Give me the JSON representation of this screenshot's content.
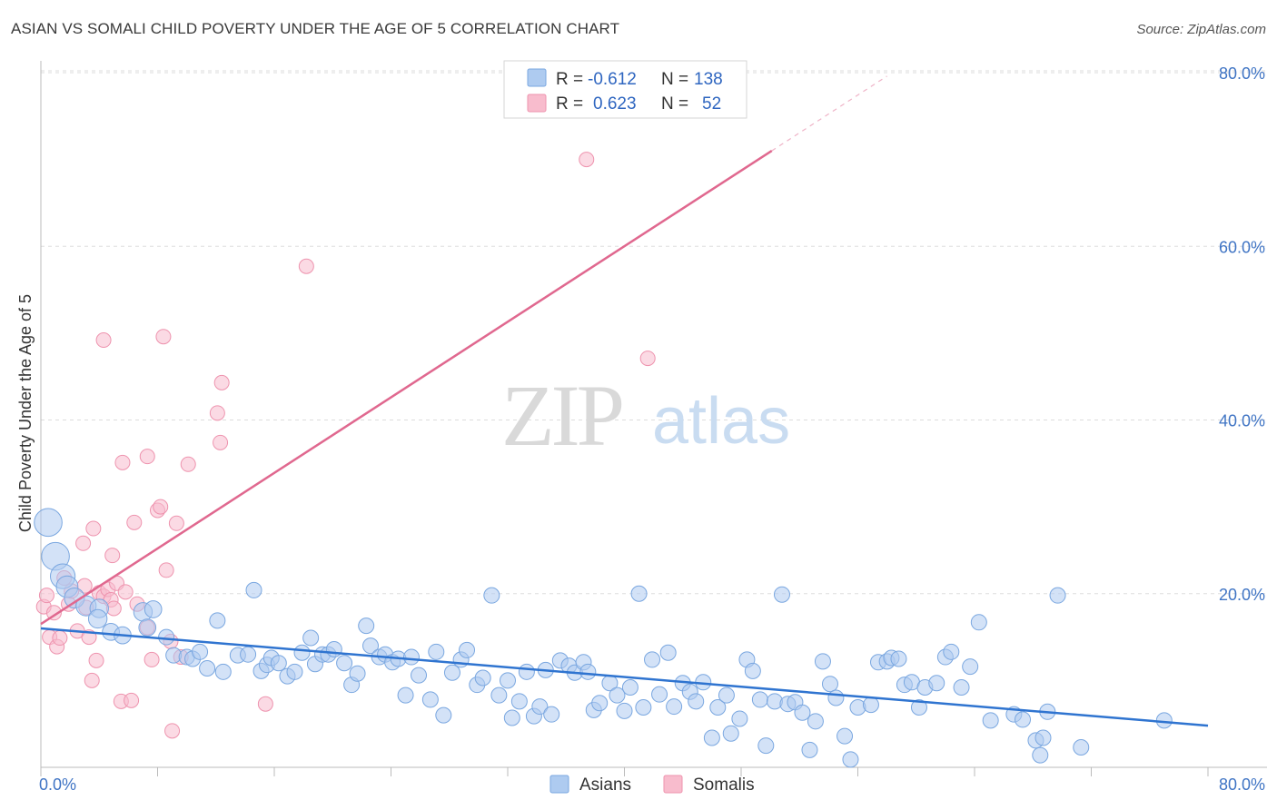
{
  "title": "ASIAN VS SOMALI CHILD POVERTY UNDER THE AGE OF 5 CORRELATION CHART",
  "source": "Source: ZipAtlas.com",
  "watermark": {
    "part1": "ZIP",
    "part2": "atlas"
  },
  "legend": {
    "asian": {
      "r_label": "R =",
      "r_value": "-0.612",
      "n_label": "N =",
      "n_value": "138"
    },
    "somali": {
      "r_label": "R =",
      "r_value": "0.623",
      "n_label": "N =",
      "n_value": "52"
    }
  },
  "bottom_legend": {
    "asian": "Asians",
    "somali": "Somalis"
  },
  "colors": {
    "asian_fill": "#aecbf0",
    "asian_stroke": "#7aa7e0",
    "asian_line": "#2f74d0",
    "somali_fill": "#f8bccd",
    "somali_stroke": "#ee93ae",
    "somali_line": "#e0688f",
    "tick_text": "#3f74c4",
    "grid": "#dddddd"
  },
  "chart_data": {
    "type": "scatter",
    "title": "ASIAN VS SOMALI CHILD POVERTY UNDER THE AGE OF 5 CORRELATION CHART",
    "xlabel": "",
    "ylabel": "Child Poverty Under the Age of 5",
    "xlim": [
      0,
      80
    ],
    "ylim": [
      0,
      80
    ],
    "x_tick_labels": [
      "0.0%",
      "80.0%"
    ],
    "y_tick_labels": [
      "20.0%",
      "40.0%",
      "60.0%",
      "80.0%"
    ],
    "y_ticks": [
      20,
      40,
      60,
      80
    ],
    "grid": true,
    "legend_position": "top-center",
    "series": [
      {
        "name": "Asians",
        "r": -0.612,
        "n": 138,
        "trend": {
          "x": [
            0,
            80
          ],
          "y": [
            16.0,
            4.8
          ]
        },
        "points": [
          [
            0.5,
            28.2,
            1.8
          ],
          [
            1.0,
            24.3,
            1.8
          ],
          [
            1.5,
            22.0,
            1.6
          ],
          [
            1.8,
            20.8,
            1.4
          ],
          [
            2.3,
            19.5,
            1.3
          ],
          [
            3.1,
            18.6,
            1.3
          ],
          [
            4.0,
            18.3,
            1.2
          ],
          [
            3.9,
            17.1,
            1.2
          ],
          [
            4.8,
            15.6,
            1.1
          ],
          [
            5.6,
            15.2,
            1.1
          ],
          [
            7.0,
            17.9,
            1.2
          ],
          [
            7.7,
            18.2,
            1.1
          ],
          [
            7.3,
            16.1,
            1.1
          ],
          [
            8.6,
            15.0,
            1.0
          ],
          [
            9.1,
            12.9,
            1.0
          ],
          [
            10.0,
            12.7,
            1.0
          ],
          [
            10.4,
            12.5,
            1.0
          ],
          [
            10.9,
            13.3,
            1.0
          ],
          [
            11.4,
            11.4,
            1.0
          ],
          [
            12.1,
            16.9,
            1.0
          ],
          [
            12.5,
            11.0,
            1.0
          ],
          [
            13.5,
            12.9,
            1.0
          ],
          [
            14.2,
            13.0,
            1.0
          ],
          [
            14.6,
            20.4,
            1.0
          ],
          [
            15.1,
            11.1,
            1.0
          ],
          [
            15.5,
            11.8,
            1.0
          ],
          [
            15.8,
            12.6,
            1.0
          ],
          [
            16.3,
            12.0,
            1.0
          ],
          [
            16.9,
            10.5,
            1.0
          ],
          [
            17.4,
            11.0,
            1.0
          ],
          [
            17.9,
            13.2,
            1.0
          ],
          [
            18.5,
            14.9,
            1.0
          ],
          [
            18.8,
            11.9,
            1.0
          ],
          [
            19.3,
            13.0,
            1.0
          ],
          [
            19.7,
            13.0,
            1.0
          ],
          [
            20.1,
            13.6,
            1.0
          ],
          [
            20.8,
            12.0,
            1.0
          ],
          [
            21.3,
            9.5,
            1.0
          ],
          [
            21.7,
            10.8,
            1.0
          ],
          [
            22.3,
            16.3,
            1.0
          ],
          [
            22.6,
            14.0,
            1.0
          ],
          [
            23.2,
            12.7,
            1.0
          ],
          [
            23.6,
            13.0,
            1.0
          ],
          [
            24.1,
            12.1,
            1.0
          ],
          [
            24.5,
            12.5,
            1.0
          ],
          [
            25.0,
            8.3,
            1.0
          ],
          [
            25.4,
            12.7,
            1.0
          ],
          [
            25.9,
            10.6,
            1.0
          ],
          [
            26.7,
            7.8,
            1.0
          ],
          [
            27.1,
            13.3,
            1.0
          ],
          [
            27.6,
            6.0,
            1.0
          ],
          [
            28.2,
            10.9,
            1.0
          ],
          [
            28.8,
            12.4,
            1.0
          ],
          [
            29.2,
            13.5,
            1.0
          ],
          [
            29.9,
            9.5,
            1.0
          ],
          [
            30.3,
            10.3,
            1.0
          ],
          [
            30.9,
            19.8,
            1.0
          ],
          [
            31.4,
            8.3,
            1.0
          ],
          [
            32.0,
            10.0,
            1.0
          ],
          [
            32.3,
            5.7,
            1.0
          ],
          [
            32.8,
            7.6,
            1.0
          ],
          [
            33.3,
            11.0,
            1.0
          ],
          [
            33.8,
            5.9,
            1.0
          ],
          [
            34.2,
            7.0,
            1.0
          ],
          [
            34.6,
            11.2,
            1.0
          ],
          [
            35.0,
            6.1,
            1.0
          ],
          [
            35.6,
            12.3,
            1.0
          ],
          [
            36.2,
            11.7,
            1.0
          ],
          [
            36.6,
            10.9,
            1.0
          ],
          [
            37.2,
            12.1,
            1.0
          ],
          [
            37.5,
            11.0,
            1.0
          ],
          [
            37.9,
            6.6,
            1.0
          ],
          [
            38.3,
            7.4,
            1.0
          ],
          [
            39.0,
            9.7,
            1.0
          ],
          [
            39.5,
            8.3,
            1.0
          ],
          [
            40.0,
            6.5,
            1.0
          ],
          [
            40.4,
            9.2,
            1.0
          ],
          [
            41.0,
            20.0,
            1.0
          ],
          [
            41.3,
            6.9,
            1.0
          ],
          [
            41.9,
            12.4,
            1.0
          ],
          [
            42.4,
            8.4,
            1.0
          ],
          [
            43.0,
            13.2,
            1.0
          ],
          [
            43.4,
            7.0,
            1.0
          ],
          [
            44.0,
            9.7,
            1.0
          ],
          [
            44.5,
            8.7,
            1.0
          ],
          [
            44.9,
            7.6,
            1.0
          ],
          [
            45.4,
            9.8,
            1.0
          ],
          [
            46.0,
            3.4,
            1.0
          ],
          [
            46.4,
            6.9,
            1.0
          ],
          [
            47.0,
            8.3,
            1.0
          ],
          [
            47.3,
            3.9,
            1.0
          ],
          [
            47.9,
            5.6,
            1.0
          ],
          [
            48.4,
            12.4,
            1.0
          ],
          [
            48.8,
            11.1,
            1.0
          ],
          [
            49.3,
            7.8,
            1.0
          ],
          [
            49.7,
            2.5,
            1.0
          ],
          [
            50.3,
            7.6,
            1.0
          ],
          [
            50.8,
            19.9,
            1.0
          ],
          [
            51.2,
            7.3,
            1.0
          ],
          [
            51.7,
            7.5,
            1.0
          ],
          [
            52.2,
            6.3,
            1.0
          ],
          [
            52.7,
            2.0,
            1.0
          ],
          [
            53.1,
            5.3,
            1.0
          ],
          [
            53.6,
            12.2,
            1.0
          ],
          [
            54.1,
            9.6,
            1.0
          ],
          [
            54.5,
            8.0,
            1.0
          ],
          [
            55.1,
            3.6,
            1.0
          ],
          [
            55.5,
            0.9,
            1.0
          ],
          [
            56.0,
            6.9,
            1.0
          ],
          [
            56.9,
            7.2,
            1.0
          ],
          [
            57.4,
            12.1,
            1.0
          ],
          [
            58.0,
            12.2,
            1.0
          ],
          [
            58.3,
            12.6,
            1.0
          ],
          [
            58.8,
            12.5,
            1.0
          ],
          [
            59.2,
            9.5,
            1.0
          ],
          [
            59.7,
            9.8,
            1.0
          ],
          [
            60.2,
            6.9,
            1.0
          ],
          [
            60.6,
            9.2,
            1.0
          ],
          [
            61.4,
            9.7,
            1.0
          ],
          [
            62.0,
            12.7,
            1.0
          ],
          [
            62.4,
            13.3,
            1.0
          ],
          [
            63.1,
            9.2,
            1.0
          ],
          [
            63.7,
            11.6,
            1.0
          ],
          [
            64.3,
            16.7,
            1.0
          ],
          [
            65.1,
            5.4,
            1.0
          ],
          [
            66.7,
            6.1,
            1.0
          ],
          [
            67.3,
            5.5,
            1.0
          ],
          [
            68.2,
            3.1,
            1.0
          ],
          [
            68.7,
            3.4,
            1.0
          ],
          [
            68.5,
            1.4,
            1.0
          ],
          [
            69.0,
            6.4,
            1.0
          ],
          [
            69.7,
            19.8,
            1.0
          ],
          [
            71.3,
            2.3,
            1.0
          ],
          [
            77.0,
            5.4,
            1.0
          ]
        ]
      },
      {
        "name": "Somalis",
        "r": 0.623,
        "n": 52,
        "trend": {
          "x": [
            0,
            50.1
          ],
          "y": [
            16.5,
            71.0
          ]
        },
        "trend_dashed": {
          "x": [
            50.1,
            58.0
          ],
          "y": [
            71.0,
            79.6
          ]
        },
        "points": [
          [
            0.2,
            18.5,
            1.0
          ],
          [
            0.4,
            19.8,
            1.0
          ],
          [
            0.6,
            15.0,
            1.0
          ],
          [
            0.9,
            17.8,
            1.0
          ],
          [
            1.1,
            13.9,
            1.0
          ],
          [
            1.3,
            14.9,
            1.0
          ],
          [
            1.6,
            21.8,
            1.0
          ],
          [
            1.9,
            18.8,
            1.0
          ],
          [
            2.1,
            20.3,
            1.0
          ],
          [
            2.5,
            15.7,
            1.0
          ],
          [
            2.9,
            25.8,
            1.0
          ],
          [
            3.0,
            20.9,
            1.0
          ],
          [
            3.1,
            18.4,
            1.0
          ],
          [
            3.3,
            15.0,
            1.0
          ],
          [
            3.5,
            10.0,
            1.0
          ],
          [
            3.6,
            27.5,
            1.0
          ],
          [
            3.8,
            12.3,
            1.0
          ],
          [
            4.0,
            20.1,
            1.0
          ],
          [
            4.3,
            19.7,
            1.0
          ],
          [
            4.3,
            49.2,
            1.0
          ],
          [
            4.6,
            20.5,
            1.0
          ],
          [
            4.8,
            19.3,
            1.0
          ],
          [
            4.9,
            24.4,
            1.0
          ],
          [
            5.0,
            18.3,
            1.0
          ],
          [
            5.2,
            21.2,
            1.0
          ],
          [
            5.5,
            7.6,
            1.0
          ],
          [
            5.6,
            35.1,
            1.0
          ],
          [
            5.8,
            20.2,
            1.0
          ],
          [
            6.2,
            7.7,
            1.0
          ],
          [
            6.4,
            28.2,
            1.0
          ],
          [
            6.6,
            18.8,
            1.0
          ],
          [
            7.3,
            16.1,
            1.0
          ],
          [
            7.3,
            35.8,
            1.0
          ],
          [
            7.6,
            12.4,
            1.0
          ],
          [
            8.0,
            29.6,
            1.0
          ],
          [
            8.2,
            30.0,
            1.0
          ],
          [
            8.4,
            49.6,
            1.0
          ],
          [
            8.6,
            22.7,
            1.0
          ],
          [
            8.9,
            14.5,
            1.0
          ],
          [
            9.0,
            4.2,
            1.0
          ],
          [
            9.3,
            28.1,
            1.0
          ],
          [
            9.6,
            12.7,
            1.0
          ],
          [
            10.1,
            34.9,
            1.0
          ],
          [
            12.3,
            37.4,
            1.0
          ],
          [
            12.1,
            40.8,
            1.0
          ],
          [
            12.4,
            44.3,
            1.0
          ],
          [
            15.4,
            7.3,
            1.0
          ],
          [
            18.2,
            57.7,
            1.0
          ],
          [
            37.4,
            70.0,
            1.0
          ],
          [
            41.6,
            47.1,
            1.0
          ]
        ]
      }
    ]
  }
}
